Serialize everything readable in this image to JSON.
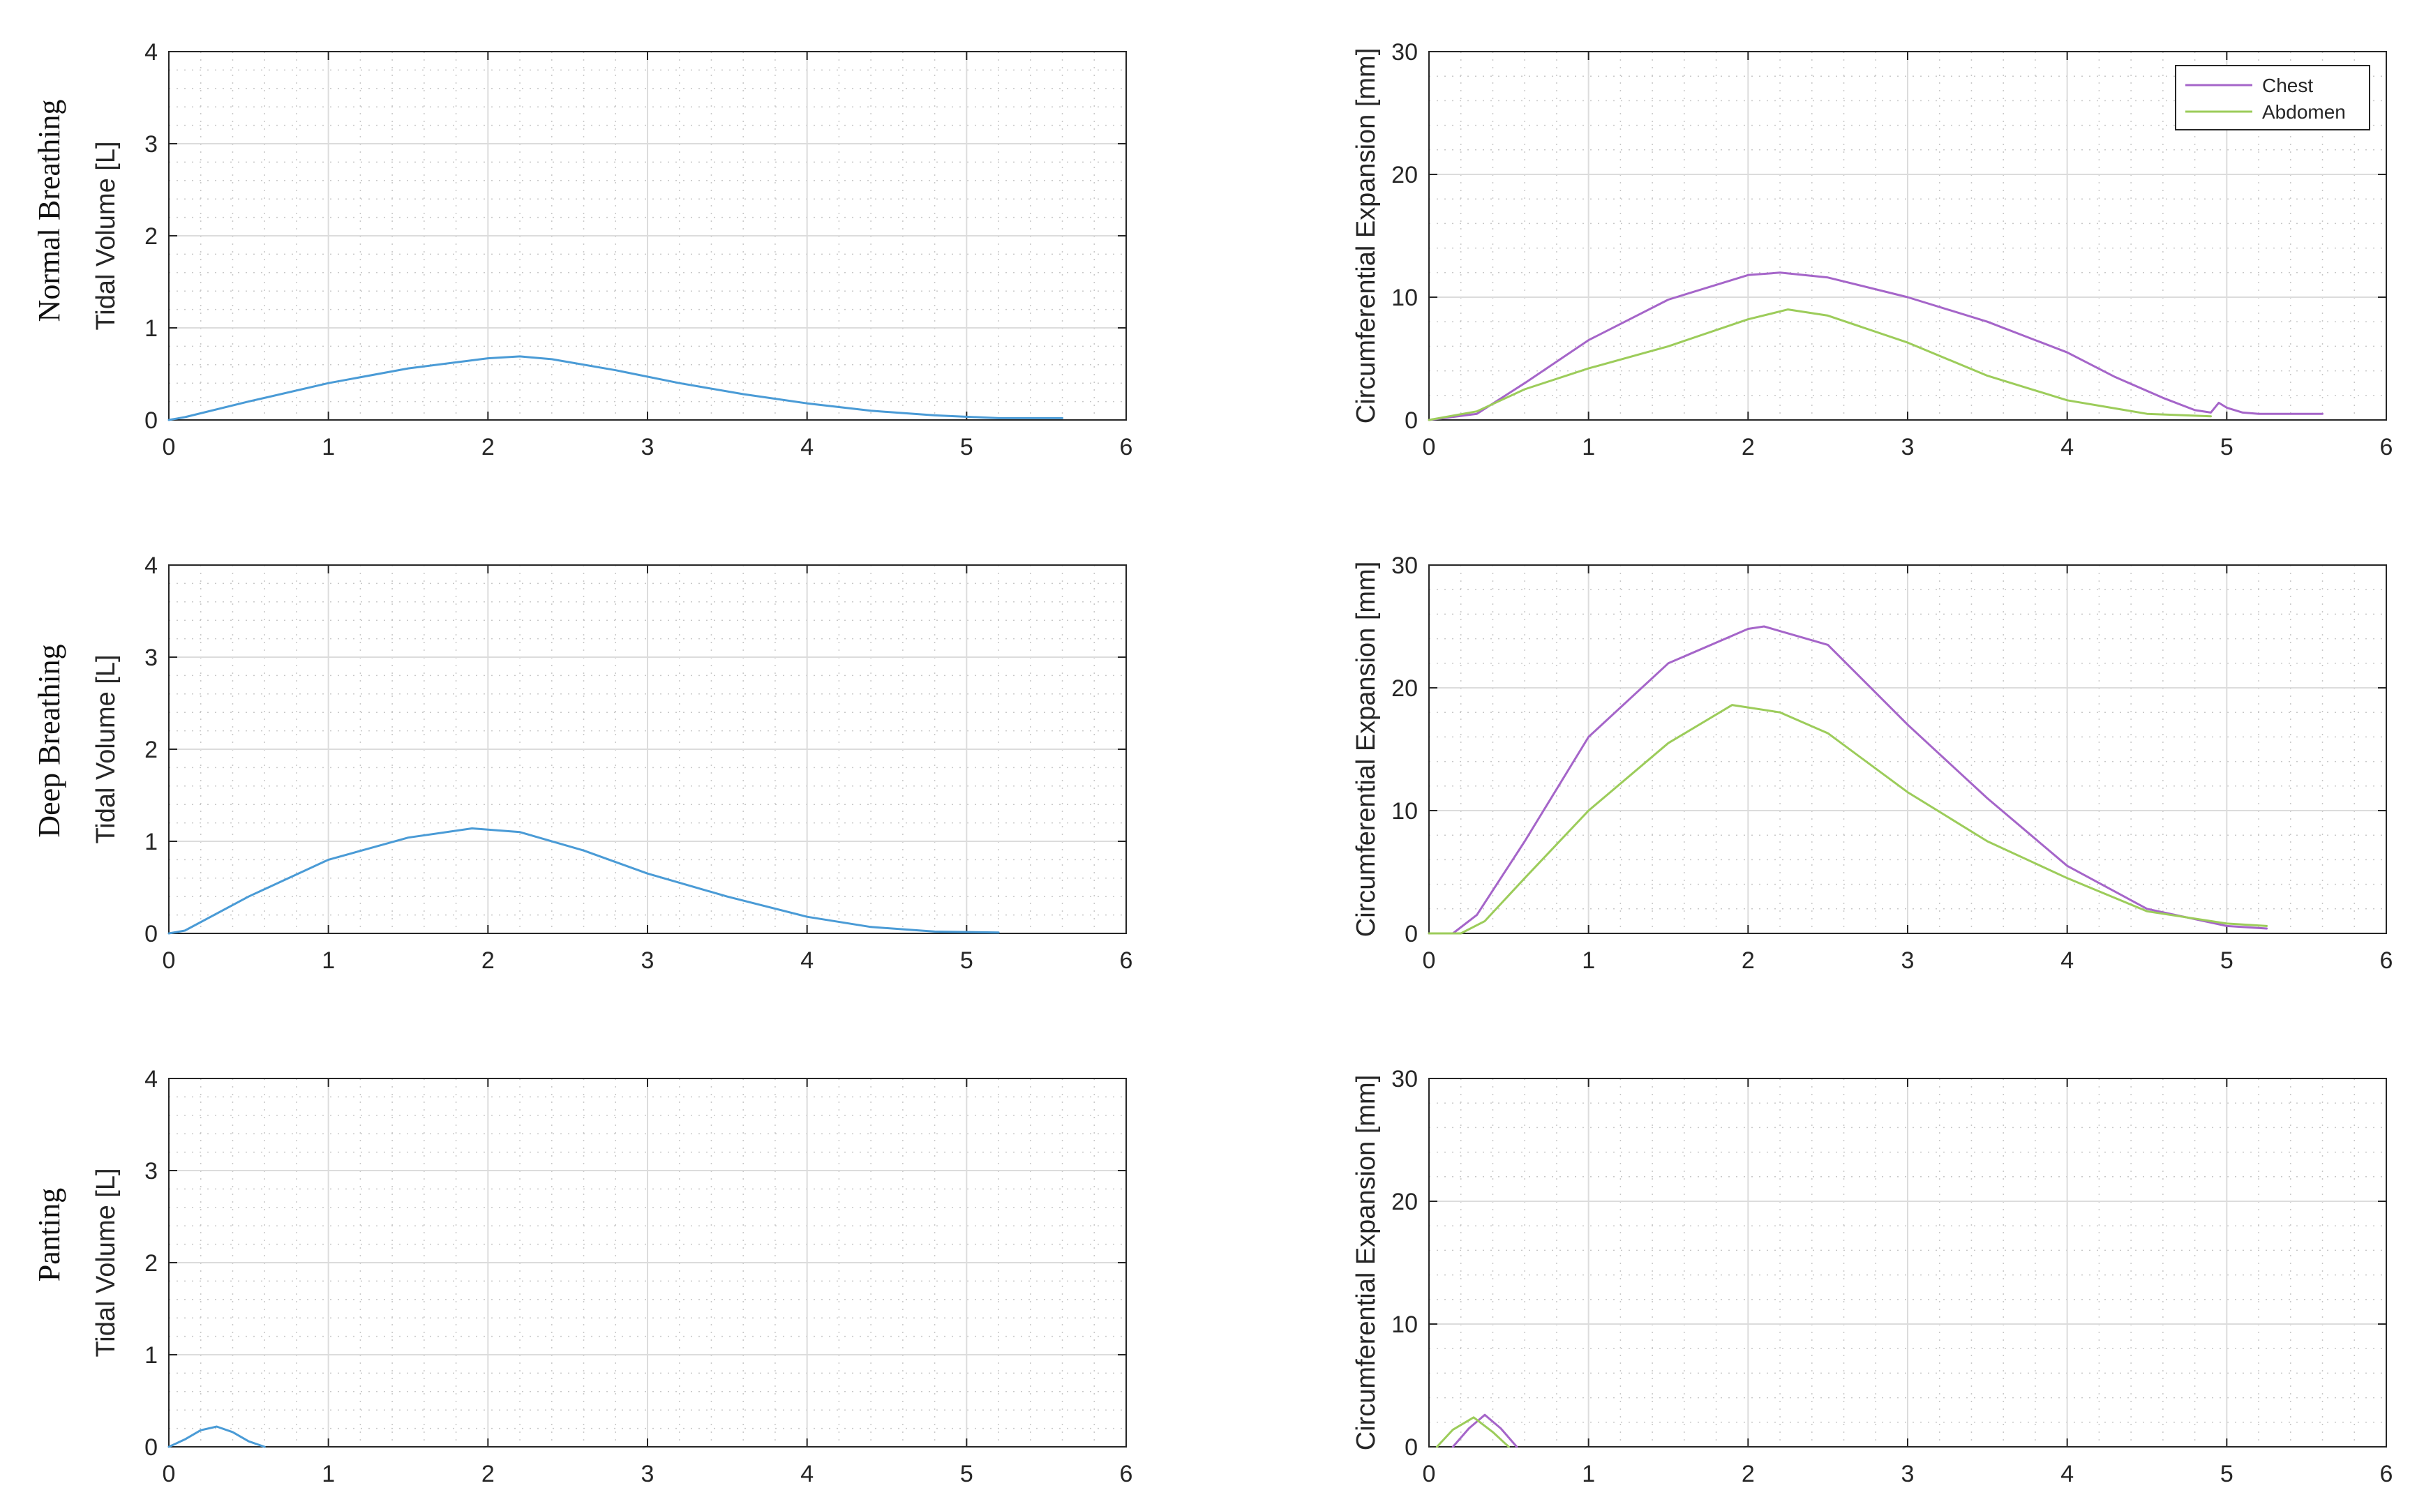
{
  "row_labels": [
    "Normal Breathing",
    "Deep Breathing",
    "Panting"
  ],
  "legend": {
    "chest": "Chest",
    "abdomen": "Abdomen"
  },
  "colors": {
    "volume": "#4a9bd6",
    "chest": "#a565c9",
    "abdomen": "#9ccc5a"
  },
  "chart_data": [
    {
      "type": "line",
      "row": "Normal Breathing",
      "xlabel": "",
      "ylabel": "Tidal Volume [L]",
      "xlim": [
        0,
        6
      ],
      "ylim": [
        0,
        4
      ],
      "xticks": [
        0,
        1,
        2,
        3,
        4,
        5,
        6
      ],
      "yticks": [
        0,
        1,
        2,
        3,
        4
      ],
      "grid": "major+minor",
      "series": [
        {
          "key": "volume",
          "x": [
            0,
            0.1,
            0.5,
            1,
            1.5,
            2,
            2.2,
            2.4,
            2.8,
            3.2,
            3.6,
            4,
            4.4,
            4.8,
            5.2,
            5.6
          ],
          "y": [
            0,
            0.03,
            0.2,
            0.4,
            0.56,
            0.67,
            0.69,
            0.66,
            0.54,
            0.4,
            0.28,
            0.18,
            0.1,
            0.05,
            0.02,
            0.02
          ]
        }
      ]
    },
    {
      "type": "line",
      "row": "Normal Breathing",
      "xlabel": "",
      "ylabel": "Circumferential Expansion [mm]",
      "xlim": [
        0,
        6
      ],
      "ylim": [
        0,
        30
      ],
      "xticks": [
        0,
        1,
        2,
        3,
        4,
        5,
        6
      ],
      "yticks": [
        0,
        10,
        20,
        30
      ],
      "grid": "major+minor",
      "legend_position": "top-right",
      "series": [
        {
          "name": "Chest",
          "key": "chest",
          "x": [
            0,
            0.3,
            0.6,
            1,
            1.5,
            2,
            2.2,
            2.5,
            3,
            3.5,
            4,
            4.3,
            4.6,
            4.8,
            4.9,
            4.95,
            5,
            5.1,
            5.2,
            5.6
          ],
          "y": [
            0,
            0.5,
            3,
            6.5,
            9.8,
            11.8,
            12,
            11.6,
            10,
            8,
            5.5,
            3.5,
            1.8,
            0.8,
            0.6,
            1.4,
            1,
            0.6,
            0.5,
            0.5
          ]
        },
        {
          "name": "Abdomen",
          "key": "abdomen",
          "x": [
            0,
            0.3,
            0.6,
            1,
            1.5,
            2,
            2.25,
            2.5,
            3,
            3.5,
            4,
            4.5,
            4.9
          ],
          "y": [
            0,
            0.7,
            2.5,
            4.2,
            6,
            8.2,
            9,
            8.5,
            6.3,
            3.6,
            1.6,
            0.5,
            0.3
          ]
        }
      ]
    },
    {
      "type": "line",
      "row": "Deep Breathing",
      "xlabel": "",
      "ylabel": "Tidal Volume [L]",
      "xlim": [
        0,
        6
      ],
      "ylim": [
        0,
        4
      ],
      "xticks": [
        0,
        1,
        2,
        3,
        4,
        5,
        6
      ],
      "yticks": [
        0,
        1,
        2,
        3,
        4
      ],
      "grid": "major+minor",
      "series": [
        {
          "key": "volume",
          "x": [
            0,
            0.1,
            0.5,
            1,
            1.5,
            1.9,
            2.2,
            2.6,
            3,
            3.5,
            4,
            4.4,
            4.8,
            5.2
          ],
          "y": [
            0,
            0.03,
            0.4,
            0.8,
            1.04,
            1.14,
            1.1,
            0.9,
            0.65,
            0.4,
            0.18,
            0.07,
            0.02,
            0.01
          ]
        }
      ]
    },
    {
      "type": "line",
      "row": "Deep Breathing",
      "xlabel": "",
      "ylabel": "Circumferential Expansion [mm]",
      "xlim": [
        0,
        6
      ],
      "ylim": [
        0,
        30
      ],
      "xticks": [
        0,
        1,
        2,
        3,
        4,
        5,
        6
      ],
      "yticks": [
        0,
        10,
        20,
        30
      ],
      "grid": "major+minor",
      "series": [
        {
          "name": "Chest",
          "key": "chest",
          "x": [
            0,
            0.15,
            0.3,
            0.6,
            1,
            1.5,
            2,
            2.1,
            2.5,
            3,
            3.5,
            4,
            4.5,
            5,
            5.25
          ],
          "y": [
            0,
            0,
            1.5,
            7.5,
            16,
            22,
            24.8,
            25,
            23.5,
            17,
            11,
            5.5,
            2,
            0.6,
            0.4
          ]
        },
        {
          "name": "Abdomen",
          "key": "abdomen",
          "x": [
            0,
            0.2,
            0.35,
            0.6,
            1,
            1.5,
            1.9,
            2.2,
            2.5,
            3,
            3.5,
            4,
            4.5,
            5,
            5.25
          ],
          "y": [
            0,
            0,
            1,
            4.5,
            10,
            15.5,
            18.6,
            18,
            16.3,
            11.5,
            7.5,
            4.5,
            1.8,
            0.8,
            0.6
          ]
        }
      ]
    },
    {
      "type": "line",
      "row": "Panting",
      "xlabel": "",
      "ylabel": "Tidal Volume [L]",
      "xlim": [
        0,
        6
      ],
      "ylim": [
        0,
        4
      ],
      "xticks": [
        0,
        1,
        2,
        3,
        4,
        5,
        6
      ],
      "yticks": [
        0,
        1,
        2,
        3,
        4
      ],
      "grid": "major+minor",
      "series": [
        {
          "key": "volume",
          "x": [
            0,
            0.1,
            0.2,
            0.3,
            0.4,
            0.5,
            0.6
          ],
          "y": [
            0,
            0.08,
            0.18,
            0.22,
            0.16,
            0.06,
            0
          ]
        }
      ]
    },
    {
      "type": "line",
      "row": "Panting",
      "xlabel": "",
      "ylabel": "Circumferential Expansion [mm]",
      "xlim": [
        0,
        6
      ],
      "ylim": [
        0,
        30
      ],
      "xticks": [
        0,
        1,
        2,
        3,
        4,
        5,
        6
      ],
      "yticks": [
        0,
        10,
        20,
        30
      ],
      "grid": "major+minor",
      "series": [
        {
          "name": "Chest",
          "key": "chest",
          "x": [
            0.15,
            0.25,
            0.35,
            0.45,
            0.55
          ],
          "y": [
            0,
            1.5,
            2.6,
            1.5,
            0
          ]
        },
        {
          "name": "Abdomen",
          "key": "abdomen",
          "x": [
            0.05,
            0.15,
            0.28,
            0.4,
            0.5
          ],
          "y": [
            0,
            1.4,
            2.4,
            1.2,
            0
          ]
        }
      ]
    }
  ]
}
